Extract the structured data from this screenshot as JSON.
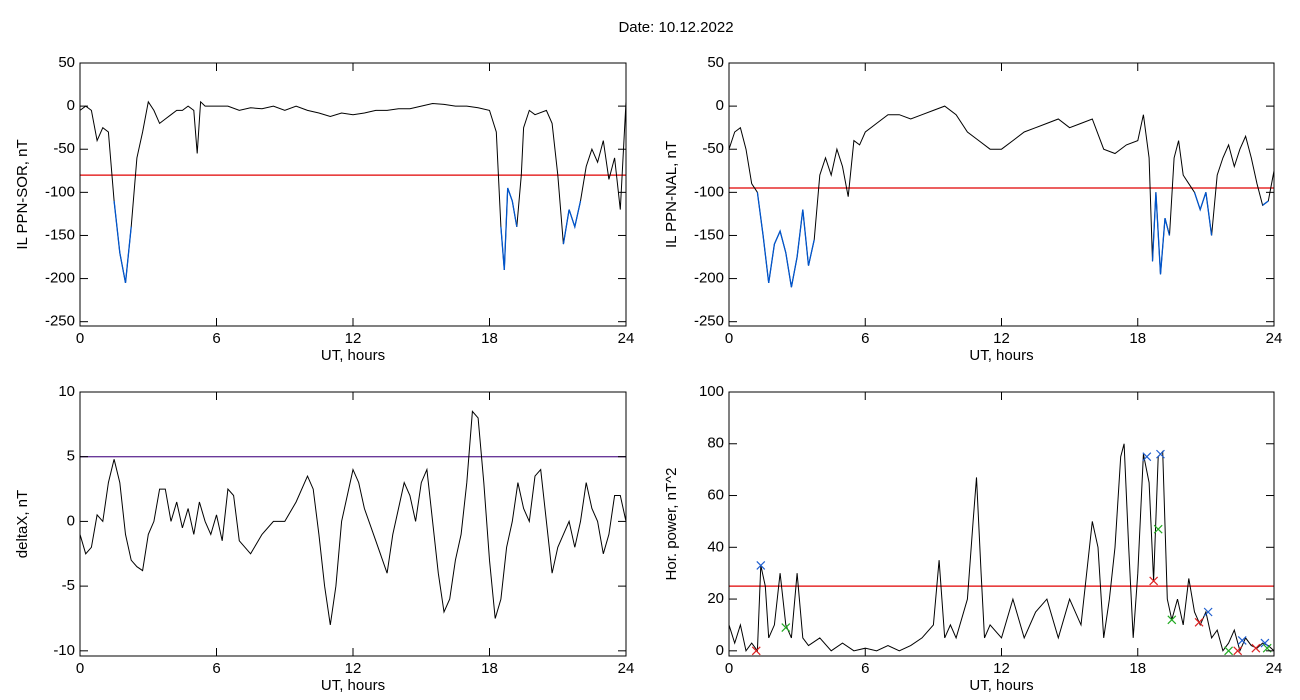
{
  "title": "Date:  10.12.2022",
  "chart_data": [
    {
      "type": "line",
      "xlabel": "UT, hours",
      "ylabel": "IL PPN-SOR, nT",
      "xlim": [
        0,
        24
      ],
      "xticks": [
        0,
        6,
        12,
        18,
        24
      ],
      "ylim": [
        -255,
        50
      ],
      "yticks": [
        50,
        0,
        -50,
        -100,
        -150,
        -200,
        -250
      ],
      "color": "#000000",
      "below_color": "#0055cc",
      "threshold": {
        "value": -80,
        "color": "#e00000"
      },
      "x": [
        0,
        0.25,
        0.5,
        0.75,
        1.0,
        1.25,
        1.5,
        1.75,
        2.0,
        2.25,
        2.5,
        2.75,
        3.0,
        3.25,
        3.5,
        3.75,
        4.0,
        4.25,
        4.5,
        4.75,
        5.0,
        5.15,
        5.3,
        5.5,
        6,
        6.5,
        7,
        7.5,
        8,
        8.5,
        9,
        9.5,
        10,
        10.5,
        11,
        11.5,
        12,
        12.5,
        13,
        13.5,
        14,
        14.5,
        15,
        15.5,
        16,
        16.5,
        17,
        17.5,
        18,
        18.3,
        18.5,
        18.65,
        18.8,
        19.0,
        19.2,
        19.4,
        19.5,
        19.75,
        20,
        20.5,
        20.75,
        21,
        21.25,
        21.5,
        21.75,
        22,
        22.25,
        22.5,
        22.75,
        23,
        23.25,
        23.5,
        23.75,
        24
      ],
      "values": [
        -5,
        0,
        -5,
        -40,
        -25,
        -30,
        -110,
        -170,
        -205,
        -140,
        -60,
        -30,
        5,
        -5,
        -20,
        -15,
        -10,
        -5,
        -5,
        0,
        -5,
        -55,
        5,
        0,
        0,
        0,
        -5,
        -2,
        -3,
        0,
        -5,
        0,
        -5,
        -8,
        -12,
        -8,
        -10,
        -8,
        -5,
        -5,
        -3,
        -3,
        0,
        3,
        2,
        0,
        0,
        -2,
        -5,
        -30,
        -140,
        -190,
        -95,
        -110,
        -140,
        -80,
        -25,
        -5,
        -10,
        -5,
        -20,
        -80,
        -160,
        -120,
        -140,
        -110,
        -70,
        -50,
        -65,
        -40,
        -85,
        -60,
        -120,
        5
      ]
    },
    {
      "type": "line",
      "xlabel": "UT, hours",
      "ylabel": "IL PPN-NAL, nT",
      "xlim": [
        0,
        24
      ],
      "xticks": [
        0,
        6,
        12,
        18,
        24
      ],
      "ylim": [
        -255,
        50
      ],
      "yticks": [
        50,
        0,
        -50,
        -100,
        -150,
        -200,
        -250
      ],
      "color": "#000000",
      "below_color": "#0055cc",
      "threshold": {
        "value": -95,
        "color": "#e00000"
      },
      "x": [
        0,
        0.25,
        0.5,
        0.75,
        1.0,
        1.25,
        1.5,
        1.75,
        2.0,
        2.25,
        2.5,
        2.75,
        3.0,
        3.25,
        3.5,
        3.75,
        4.0,
        4.25,
        4.5,
        4.75,
        5.0,
        5.25,
        5.5,
        5.75,
        6,
        6.5,
        7,
        7.5,
        8,
        8.5,
        9,
        9.5,
        10,
        10.5,
        11,
        11.5,
        12,
        12.5,
        13,
        13.5,
        14,
        14.5,
        15,
        15.5,
        16,
        16.5,
        17,
        17.5,
        18,
        18.25,
        18.5,
        18.65,
        18.8,
        19,
        19.2,
        19.4,
        19.6,
        19.8,
        20,
        20.25,
        20.5,
        20.75,
        21,
        21.25,
        21.5,
        21.75,
        22,
        22.25,
        22.5,
        22.75,
        23,
        23.25,
        23.5,
        23.75,
        24
      ],
      "values": [
        -50,
        -30,
        -25,
        -50,
        -90,
        -100,
        -150,
        -205,
        -160,
        -145,
        -170,
        -210,
        -175,
        -120,
        -185,
        -155,
        -80,
        -60,
        -80,
        -50,
        -70,
        -105,
        -40,
        -45,
        -30,
        -20,
        -10,
        -10,
        -15,
        -10,
        -5,
        0,
        -10,
        -30,
        -40,
        -50,
        -50,
        -40,
        -30,
        -25,
        -20,
        -15,
        -25,
        -20,
        -15,
        -50,
        -55,
        -45,
        -40,
        -10,
        -60,
        -180,
        -100,
        -195,
        -130,
        -150,
        -60,
        -40,
        -80,
        -90,
        -100,
        -120,
        -100,
        -150,
        -80,
        -60,
        -45,
        -70,
        -50,
        -35,
        -60,
        -90,
        -115,
        -110,
        -75
      ]
    },
    {
      "type": "line",
      "xlabel": "UT, hours",
      "ylabel": "deltaX, nT",
      "xlim": [
        0,
        24
      ],
      "xticks": [
        0,
        6,
        12,
        18,
        24
      ],
      "ylim": [
        -10.4,
        10
      ],
      "yticks": [
        10,
        5,
        0,
        -5,
        -10
      ],
      "color": "#000000",
      "threshold": {
        "value": 5,
        "color": "#6a3a9a"
      },
      "x": [
        0,
        0.25,
        0.5,
        0.75,
        1.0,
        1.25,
        1.5,
        1.75,
        2.0,
        2.25,
        2.5,
        2.75,
        3.0,
        3.25,
        3.5,
        3.75,
        4.0,
        4.25,
        4.5,
        4.75,
        5.0,
        5.25,
        5.5,
        5.75,
        6,
        6.25,
        6.5,
        6.75,
        7,
        7.5,
        8,
        8.5,
        9,
        9.5,
        10,
        10.25,
        10.5,
        10.75,
        11,
        11.25,
        11.5,
        11.75,
        12,
        12.25,
        12.5,
        13,
        13.5,
        13.75,
        14,
        14.25,
        14.5,
        14.75,
        15,
        15.25,
        15.5,
        15.75,
        16,
        16.25,
        16.5,
        16.75,
        17,
        17.25,
        17.5,
        17.75,
        18,
        18.25,
        18.5,
        18.75,
        19,
        19.25,
        19.5,
        19.75,
        20,
        20.25,
        20.5,
        20.75,
        21,
        21.25,
        21.5,
        21.75,
        22,
        22.25,
        22.5,
        22.75,
        23,
        23.25,
        23.5,
        23.75,
        24
      ],
      "values": [
        -1,
        -2.5,
        -2,
        0.5,
        0,
        3,
        4.8,
        3,
        -1,
        -3,
        -3.5,
        -3.8,
        -1,
        0,
        2.5,
        2.5,
        0,
        1.5,
        -0.5,
        1,
        -1,
        1.5,
        0,
        -1,
        0.5,
        -1.5,
        2.5,
        2,
        -1.5,
        -2.5,
        -1,
        0,
        0,
        1.5,
        3.5,
        2.5,
        -1,
        -5,
        -8,
        -5,
        0,
        2,
        4,
        3,
        1,
        -1.5,
        -4,
        -1,
        1,
        3,
        2,
        0,
        3,
        4,
        0,
        -4,
        -7,
        -6,
        -3,
        -1,
        3,
        8.5,
        8,
        3,
        -3,
        -7.5,
        -6,
        -2,
        0,
        3,
        1,
        0,
        3.5,
        4,
        0,
        -4,
        -2,
        -1,
        0,
        -2,
        0,
        3,
        1,
        0,
        -2.5,
        -1,
        2,
        2,
        0
      ]
    },
    {
      "type": "line",
      "xlabel": "UT, hours",
      "ylabel": "Hor. power, nT^2",
      "xlim": [
        0,
        24
      ],
      "xticks": [
        0,
        6,
        12,
        18,
        24
      ],
      "ylim": [
        -2,
        100
      ],
      "yticks": [
        100,
        80,
        60,
        40,
        20,
        0
      ],
      "color": "#000000",
      "threshold": {
        "value": 25,
        "color": "#e00000"
      },
      "x": [
        0,
        0.25,
        0.5,
        0.75,
        1.0,
        1.25,
        1.4,
        1.6,
        1.75,
        2.0,
        2.25,
        2.5,
        2.75,
        3.0,
        3.25,
        3.5,
        4,
        4.5,
        5,
        5.5,
        6,
        6.5,
        7,
        7.5,
        8,
        8.5,
        9,
        9.25,
        9.5,
        9.75,
        10,
        10.5,
        10.75,
        10.9,
        11.1,
        11.25,
        11.5,
        12,
        12.5,
        13,
        13.5,
        14,
        14.5,
        15,
        15.5,
        16,
        16.25,
        16.5,
        16.75,
        17,
        17.25,
        17.4,
        17.6,
        17.8,
        18,
        18.25,
        18.5,
        18.7,
        18.9,
        19.1,
        19.3,
        19.5,
        19.75,
        20,
        20.25,
        20.5,
        20.75,
        21,
        21.25,
        21.5,
        21.75,
        22,
        22.25,
        22.5,
        22.75,
        23,
        23.25,
        23.5,
        23.75,
        24
      ],
      "values": [
        10,
        3,
        10,
        0,
        3,
        0,
        33,
        25,
        5,
        10,
        30,
        10,
        5,
        30,
        5,
        2,
        5,
        0,
        3,
        0,
        1,
        0,
        2,
        0,
        2,
        5,
        10,
        35,
        5,
        10,
        5,
        20,
        50,
        67,
        30,
        5,
        10,
        5,
        20,
        5,
        15,
        20,
        5,
        20,
        10,
        50,
        40,
        5,
        20,
        40,
        75,
        80,
        40,
        5,
        30,
        76,
        65,
        27,
        75,
        77,
        20,
        12,
        20,
        10,
        28,
        15,
        10,
        15,
        5,
        8,
        0,
        3,
        8,
        0,
        5,
        2,
        1,
        3,
        2,
        0
      ],
      "markers": [
        {
          "color": "#1f5fd0",
          "x": [
            1.4,
            18.4,
            19.0,
            21.1,
            22.6,
            23.6
          ],
          "y": [
            33,
            75,
            76,
            15,
            4,
            3
          ]
        },
        {
          "color": "#22aa22",
          "x": [
            2.5,
            18.9,
            19.5,
            22.0,
            23.7
          ],
          "y": [
            9,
            47,
            12,
            0,
            1
          ]
        },
        {
          "color": "#dd2222",
          "x": [
            1.2,
            18.7,
            20.7,
            22.4,
            23.2
          ],
          "y": [
            0,
            27,
            11,
            0,
            1
          ]
        }
      ]
    }
  ]
}
